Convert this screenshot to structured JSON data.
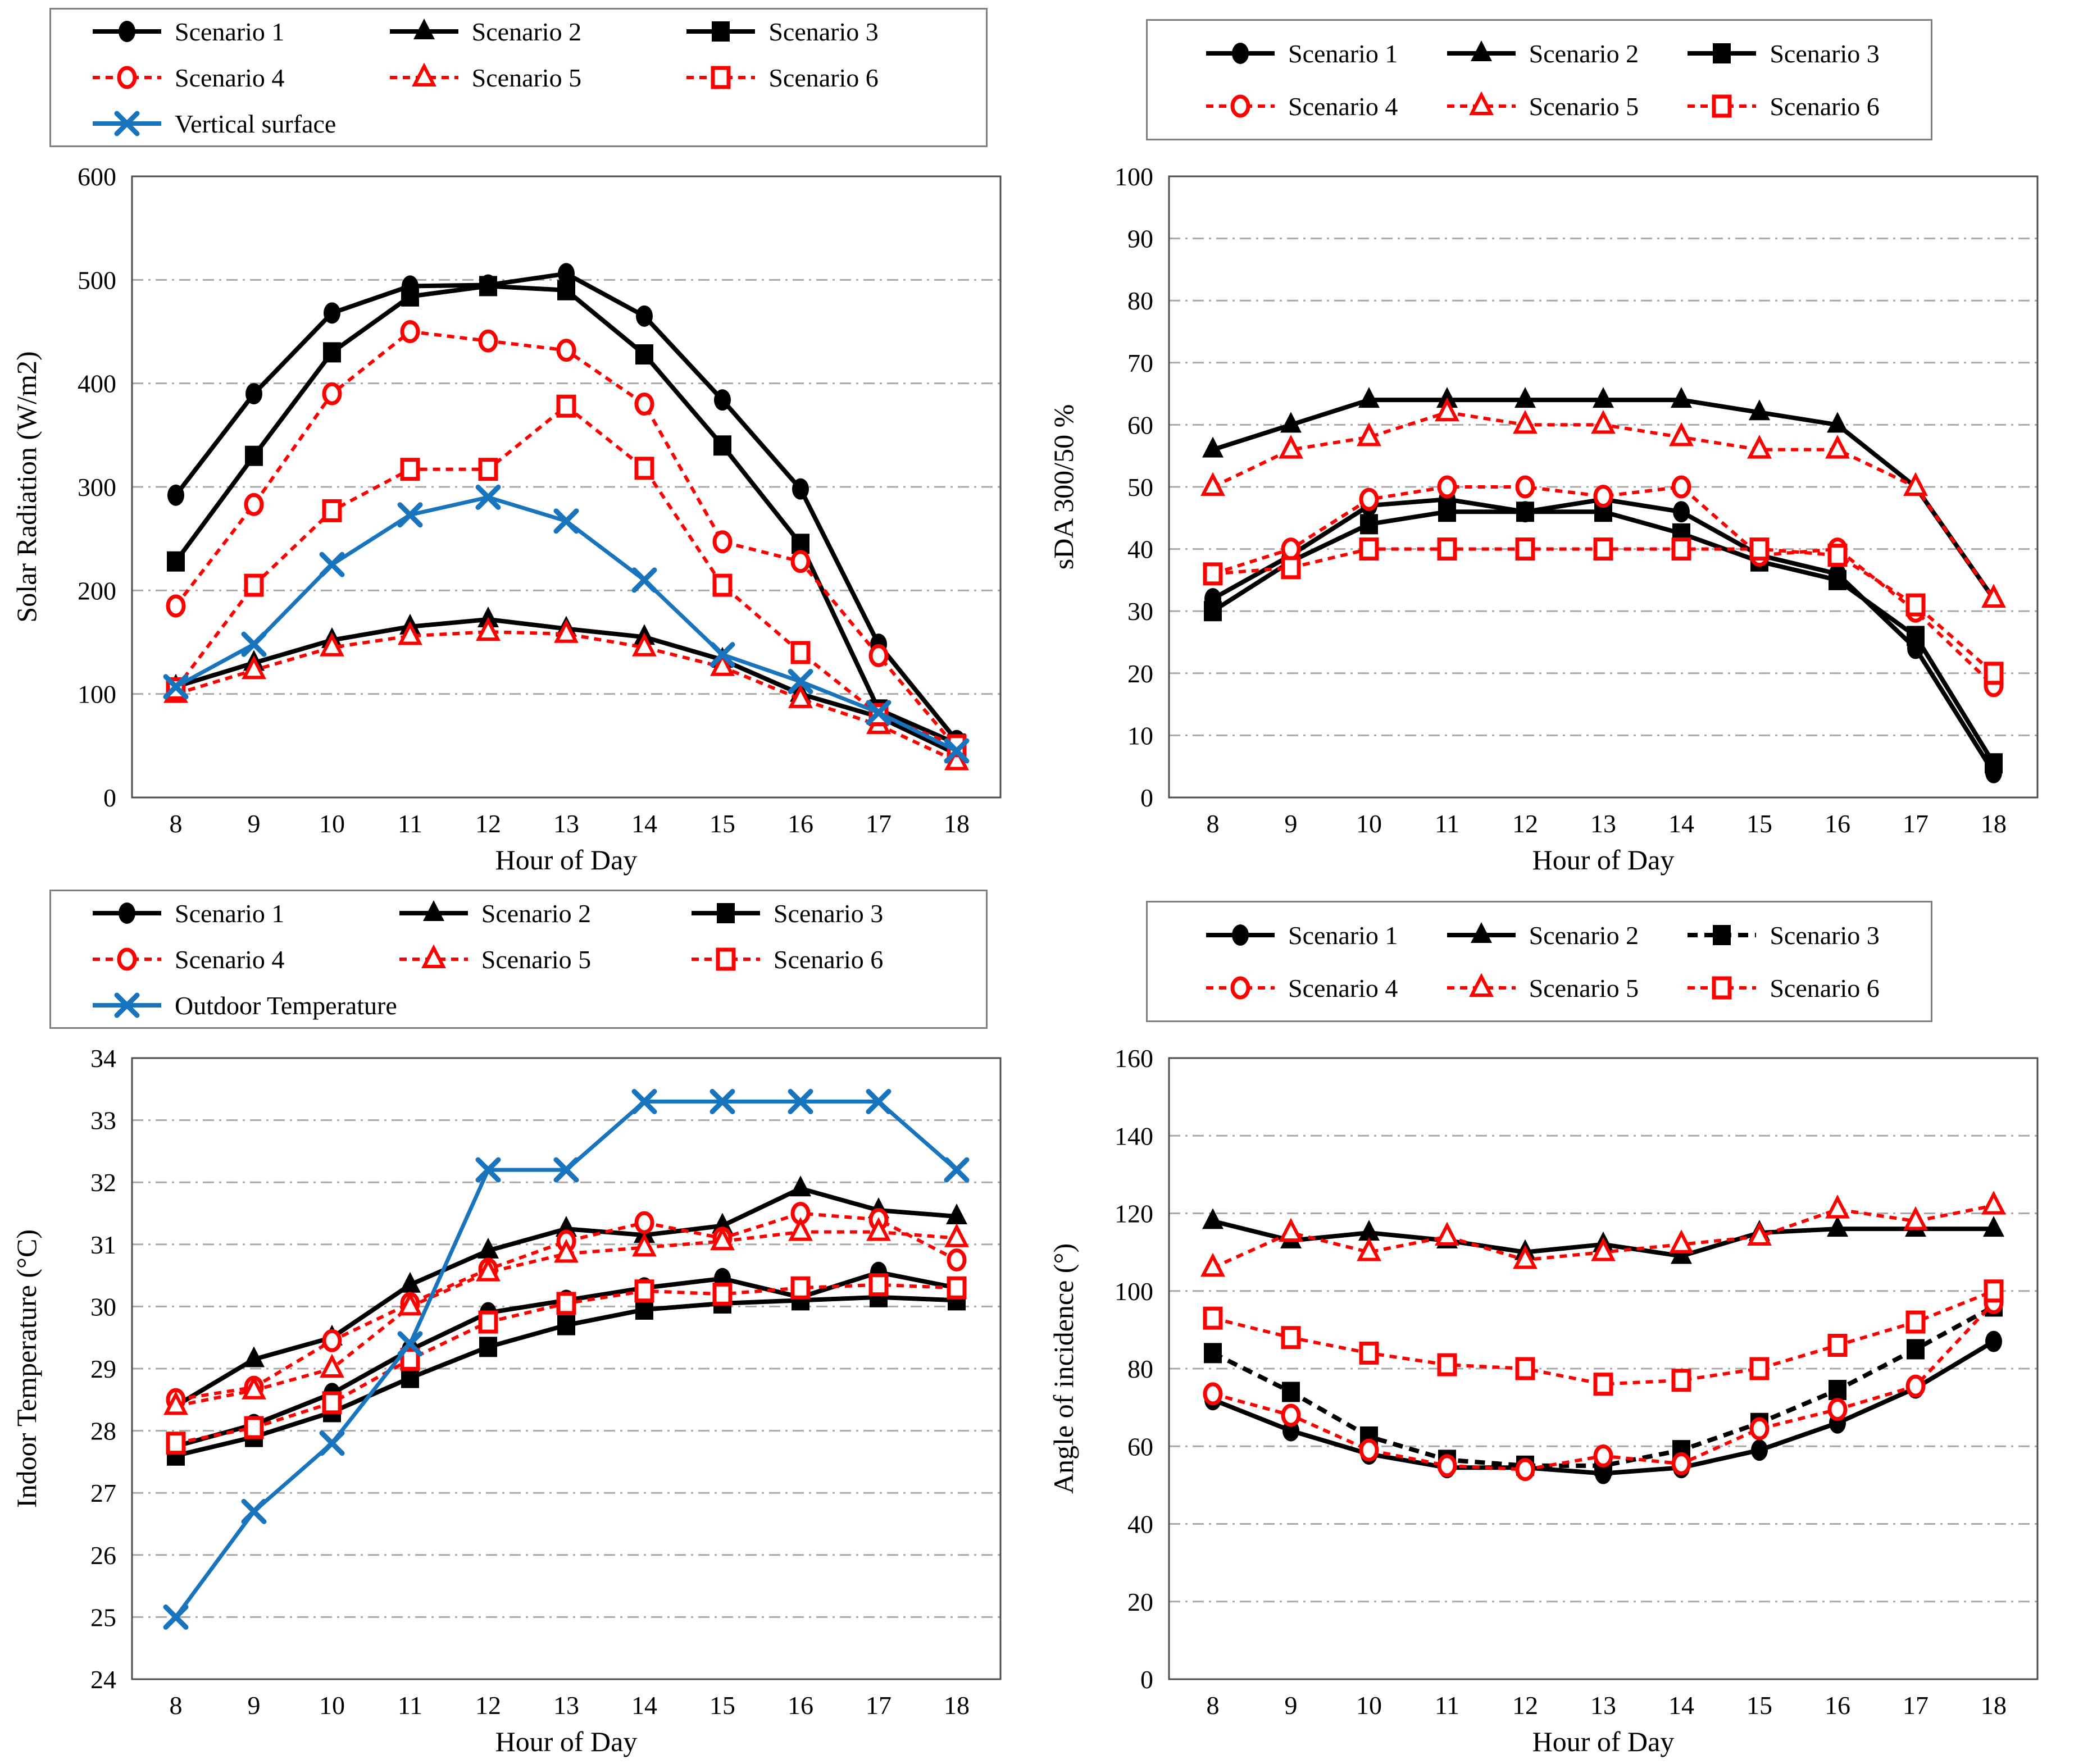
{
  "figure": {
    "background": "#ffffff"
  },
  "colors": {
    "black": "#000000",
    "red": "#ff0000",
    "blue": "#1874bc",
    "grid": "#a9a9a9",
    "frame": "#4d4d4d"
  },
  "x_axis_hours": [
    8,
    9,
    10,
    11,
    12,
    13,
    14,
    15,
    16,
    17,
    18
  ],
  "chart_data": [
    {
      "id": "solar-radiation",
      "type": "line",
      "xlabel": "Hour of Day",
      "ylabel": "Solar Radiation (W/m2)",
      "x": [
        8,
        9,
        10,
        11,
        12,
        13,
        14,
        15,
        16,
        17,
        18
      ],
      "ylim": [
        0,
        600
      ],
      "ytick_step": 100,
      "grid": "horizontal",
      "legend_position": "top",
      "series": [
        {
          "name": "Scenario 1",
          "color": "black",
          "line": "solid",
          "marker": "circle-filled",
          "values": [
            292,
            390,
            468,
            494,
            495,
            506,
            465,
            384,
            298,
            148,
            55
          ]
        },
        {
          "name": "Scenario 2",
          "color": "black",
          "line": "solid",
          "marker": "triangle-filled",
          "values": [
            107,
            130,
            152,
            165,
            172,
            163,
            155,
            133,
            100,
            78,
            42
          ]
        },
        {
          "name": "Scenario 3",
          "color": "black",
          "line": "solid",
          "marker": "square-filled",
          "values": [
            228,
            330,
            430,
            484,
            494,
            490,
            428,
            340,
            245,
            85,
            52
          ]
        },
        {
          "name": "Scenario 4",
          "color": "red",
          "line": "dashed",
          "marker": "circle-open",
          "values": [
            185,
            283,
            390,
            450,
            441,
            432,
            380,
            247,
            228,
            137,
            48
          ]
        },
        {
          "name": "Scenario 5",
          "color": "red",
          "line": "dashed",
          "marker": "triangle-open",
          "values": [
            100,
            123,
            145,
            156,
            160,
            158,
            145,
            126,
            95,
            70,
            35
          ]
        },
        {
          "name": "Scenario 6",
          "color": "red",
          "line": "dashed",
          "marker": "square-open",
          "values": [
            105,
            205,
            277,
            317,
            317,
            378,
            318,
            205,
            140,
            80,
            50
          ]
        },
        {
          "name": "Vertical surface",
          "color": "blue",
          "line": "solid",
          "marker": "x",
          "values": [
            107,
            148,
            225,
            273,
            290,
            267,
            210,
            138,
            112,
            82,
            45
          ]
        }
      ]
    },
    {
      "id": "sda",
      "type": "line",
      "xlabel": "Hour of Day",
      "ylabel": "sDA 300/50 %",
      "x": [
        8,
        9,
        10,
        11,
        12,
        13,
        14,
        15,
        16,
        17,
        18
      ],
      "ylim": [
        0,
        100
      ],
      "ytick_step": 10,
      "grid": "horizontal",
      "legend_position": "top",
      "series": [
        {
          "name": "Scenario 1",
          "color": "black",
          "line": "solid",
          "marker": "circle-filled",
          "values": [
            32,
            39,
            47,
            48,
            46,
            48,
            46,
            39,
            36,
            24,
            4
          ]
        },
        {
          "name": "Scenario 2",
          "color": "black",
          "line": "solid",
          "marker": "triangle-filled",
          "values": [
            56,
            60,
            64,
            64,
            64,
            64,
            64,
            62,
            60,
            50,
            32
          ]
        },
        {
          "name": "Scenario 3",
          "color": "black",
          "line": "solid",
          "marker": "square-filled",
          "values": [
            30,
            38,
            44,
            46,
            46,
            46,
            42.5,
            38,
            35,
            26,
            5.5
          ]
        },
        {
          "name": "Scenario 4",
          "color": "red",
          "line": "dashed",
          "marker": "circle-open",
          "values": [
            36,
            40,
            48,
            50,
            50,
            48.5,
            50,
            39,
            40,
            30,
            18
          ]
        },
        {
          "name": "Scenario 5",
          "color": "red",
          "line": "dashed",
          "marker": "triangle-open",
          "values": [
            50,
            56,
            58,
            62,
            60,
            60,
            58,
            56,
            56,
            50,
            32
          ]
        },
        {
          "name": "Scenario 6",
          "color": "red",
          "line": "dashed",
          "marker": "square-open",
          "values": [
            36,
            37,
            40,
            40,
            40,
            40,
            40,
            40,
            39,
            31,
            20
          ]
        }
      ]
    },
    {
      "id": "indoor-temperature",
      "type": "line",
      "xlabel": "Hour of Day",
      "ylabel": "Indoor Temperature (°C)",
      "x": [
        8,
        9,
        10,
        11,
        12,
        13,
        14,
        15,
        16,
        17,
        18
      ],
      "ylim": [
        24,
        34
      ],
      "ytick_step": 1,
      "grid": "horizontal",
      "legend_position": "top",
      "series": [
        {
          "name": "Scenario 1",
          "color": "black",
          "line": "solid",
          "marker": "circle-filled",
          "values": [
            27.75,
            28.1,
            28.6,
            29.3,
            29.9,
            30.1,
            30.3,
            30.45,
            30.15,
            30.55,
            30.3
          ]
        },
        {
          "name": "Scenario 2",
          "color": "black",
          "line": "solid",
          "marker": "triangle-filled",
          "values": [
            28.4,
            29.15,
            29.5,
            30.35,
            30.9,
            31.25,
            31.15,
            31.3,
            31.9,
            31.55,
            31.45
          ]
        },
        {
          "name": "Scenario 3",
          "color": "black",
          "line": "solid",
          "marker": "square-filled",
          "values": [
            27.6,
            27.9,
            28.3,
            28.85,
            29.35,
            29.7,
            29.95,
            30.05,
            30.1,
            30.15,
            30.1
          ]
        },
        {
          "name": "Scenario 4",
          "color": "red",
          "line": "dashed",
          "marker": "circle-open",
          "values": [
            28.5,
            28.7,
            29.45,
            30.05,
            30.6,
            31.05,
            31.35,
            31.1,
            31.5,
            31.4,
            30.75
          ]
        },
        {
          "name": "Scenario 5",
          "color": "red",
          "line": "dashed",
          "marker": "triangle-open",
          "values": [
            28.4,
            28.65,
            29.0,
            30.0,
            30.55,
            30.85,
            30.95,
            31.05,
            31.2,
            31.2,
            31.1
          ]
        },
        {
          "name": "Scenario 6",
          "color": "red",
          "line": "dashed",
          "marker": "square-open",
          "values": [
            27.8,
            28.05,
            28.45,
            29.15,
            29.75,
            30.05,
            30.25,
            30.2,
            30.3,
            30.35,
            30.3
          ]
        },
        {
          "name": "Outdoor Temperature",
          "color": "blue",
          "line": "solid",
          "marker": "x",
          "values": [
            25.0,
            26.7,
            27.8,
            29.4,
            32.2,
            32.2,
            33.3,
            33.3,
            33.3,
            33.3,
            32.2
          ]
        }
      ]
    },
    {
      "id": "angle-of-incidence",
      "type": "line",
      "xlabel": "Hour of Day",
      "ylabel": "Angle of incidence (°)",
      "x": [
        8,
        9,
        10,
        11,
        12,
        13,
        14,
        15,
        16,
        17,
        18
      ],
      "ylim": [
        0,
        160
      ],
      "ytick_step": 20,
      "grid": "horizontal",
      "legend_position": "top",
      "series": [
        {
          "name": "Scenario 1",
          "color": "black",
          "line": "solid",
          "marker": "circle-filled",
          "values": [
            72,
            64,
            58,
            54.5,
            54.5,
            53,
            54.5,
            59,
            66,
            75,
            87
          ]
        },
        {
          "name": "Scenario 2",
          "color": "black",
          "line": "solid",
          "marker": "triangle-filled",
          "values": [
            118,
            113,
            115,
            113,
            110,
            112,
            109,
            115,
            116,
            116,
            116
          ]
        },
        {
          "name": "Scenario 3",
          "color": "black",
          "line": "dashed",
          "marker": "square-filled",
          "values": [
            84,
            74,
            62.5,
            56.5,
            55,
            55,
            59,
            66,
            74.5,
            85,
            96
          ]
        },
        {
          "name": "Scenario 4",
          "color": "red",
          "line": "dashed",
          "marker": "circle-open",
          "values": [
            73.5,
            68,
            59,
            55,
            54,
            57.5,
            55.5,
            64.5,
            69.5,
            75.5,
            97
          ]
        },
        {
          "name": "Scenario 5",
          "color": "red",
          "line": "dashed",
          "marker": "triangle-open",
          "values": [
            106,
            115,
            110,
            114,
            108,
            110,
            112,
            114,
            121,
            118,
            122
          ]
        },
        {
          "name": "Scenario 6",
          "color": "red",
          "line": "dashed",
          "marker": "square-open",
          "values": [
            93,
            88,
            84,
            81,
            80,
            76,
            77,
            80,
            86,
            92,
            100
          ]
        }
      ]
    }
  ]
}
